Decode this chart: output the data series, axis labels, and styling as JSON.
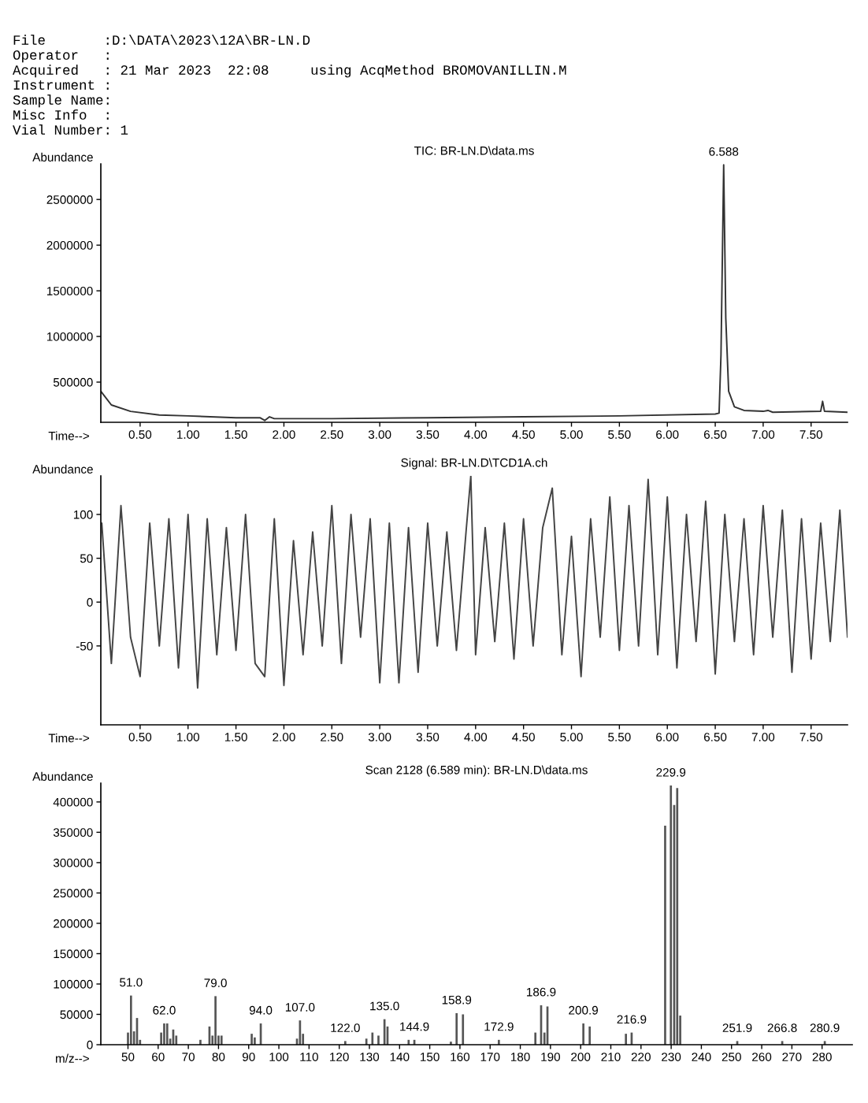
{
  "chart_data": [
    {
      "type": "line",
      "title": "TIC: BR-LN.D\\data.ms",
      "xlabel": "Time-->",
      "ylabel": "Abundance",
      "annotations": [
        "File       :D:\\DATA\\2023\\12A\\BR-LN.D",
        "Operator   :",
        "Acquired   : 21 Mar 2023  22:08     using AcqMethod BROMOVANILLIN.M",
        "Instrument :",
        "Sample Name:",
        "Misc Info  :",
        "Vial Number: 1",
        {
          "text": "6.588",
          "x": 6.588,
          "y": 2880000
        }
      ],
      "x": [
        0.09,
        0.2,
        0.4,
        0.7,
        1.0,
        1.5,
        1.75,
        1.8,
        1.85,
        1.9,
        2.5,
        3.5,
        4.5,
        5.5,
        6.5,
        6.54,
        6.56,
        6.588,
        6.61,
        6.64,
        6.7,
        6.8,
        7.0,
        7.05,
        7.1,
        7.6,
        7.62,
        7.64,
        7.88
      ],
      "series": [
        {
          "color": "#333333",
          "values": [
            400000,
            250000,
            180000,
            140000,
            130000,
            110000,
            110000,
            80000,
            120000,
            100000,
            100000,
            110000,
            120000,
            130000,
            150000,
            160000,
            800000,
            2880000,
            1200000,
            400000,
            230000,
            190000,
            180000,
            190000,
            170000,
            180000,
            290000,
            180000,
            170000
          ]
        }
      ],
      "xlim": [
        0.09,
        7.88
      ],
      "ylim": [
        60000,
        2890000
      ],
      "xticks": [
        {
          "value": 0.5,
          "label": "0.50"
        },
        {
          "value": 1.0,
          "label": "1.00"
        },
        {
          "value": 1.5,
          "label": "1.50"
        },
        {
          "value": 2.0,
          "label": "2.00"
        },
        {
          "value": 2.5,
          "label": "2.50"
        },
        {
          "value": 3.0,
          "label": "3.00"
        },
        {
          "value": 3.5,
          "label": "3.50"
        },
        {
          "value": 4.0,
          "label": "4.00"
        },
        {
          "value": 4.5,
          "label": "4.50"
        },
        {
          "value": 5.0,
          "label": "5.00"
        },
        {
          "value": 5.5,
          "label": "5.50"
        },
        {
          "value": 6.0,
          "label": "6.00"
        },
        {
          "value": 6.5,
          "label": "6.50"
        },
        {
          "value": 7.0,
          "label": "7.00"
        },
        {
          "value": 7.5,
          "label": "7.50"
        }
      ],
      "yticks": [
        500000,
        1000000,
        1500000,
        2000000,
        2500000
      ],
      "grid": false,
      "legend": false
    },
    {
      "type": "line",
      "title": "Signal: BR-LN.D\\TCD1A.ch",
      "xlabel": "Time-->",
      "ylabel": "Abundance",
      "x": [
        0.1,
        0.2,
        0.3,
        0.4,
        0.5,
        0.6,
        0.7,
        0.8,
        0.9,
        1.0,
        1.1,
        1.2,
        1.3,
        1.4,
        1.5,
        1.6,
        1.7,
        1.8,
        1.9,
        2.0,
        2.1,
        2.2,
        2.3,
        2.4,
        2.5,
        2.6,
        2.7,
        2.8,
        2.9,
        3.0,
        3.1,
        3.2,
        3.3,
        3.4,
        3.5,
        3.6,
        3.7,
        3.8,
        3.9,
        3.95,
        4.0,
        4.1,
        4.2,
        4.3,
        4.4,
        4.5,
        4.6,
        4.7,
        4.8,
        4.9,
        5.0,
        5.1,
        5.2,
        5.3,
        5.4,
        5.5,
        5.6,
        5.7,
        5.8,
        5.9,
        6.0,
        6.1,
        6.2,
        6.3,
        6.4,
        6.5,
        6.6,
        6.7,
        6.8,
        6.9,
        7.0,
        7.1,
        7.2,
        7.3,
        7.4,
        7.5,
        7.6,
        7.7,
        7.8,
        7.88
      ],
      "series": [
        {
          "color": "#444444",
          "values": [
            90,
            -70,
            110,
            -40,
            -85,
            90,
            -50,
            95,
            -75,
            100,
            -98,
            95,
            -60,
            85,
            -55,
            100,
            -70,
            -85,
            95,
            -95,
            70,
            -60,
            80,
            -50,
            110,
            -70,
            100,
            -40,
            95,
            -92,
            90,
            -92,
            85,
            -80,
            90,
            -50,
            80,
            -55,
            80,
            144,
            -60,
            85,
            -45,
            90,
            -65,
            95,
            -50,
            85,
            130,
            -60,
            75,
            -85,
            95,
            -40,
            120,
            -55,
            110,
            -50,
            140,
            -60,
            120,
            -75,
            100,
            -45,
            115,
            -82,
            100,
            -45,
            95,
            -60,
            110,
            -40,
            105,
            -80,
            95,
            -65,
            90,
            -45,
            105,
            -40
          ]
        }
      ],
      "xlim": [
        0.09,
        7.88
      ],
      "ylim": [
        -140,
        144
      ],
      "xticks": [
        {
          "value": 0.5,
          "label": "0.50"
        },
        {
          "value": 1.0,
          "label": "1.00"
        },
        {
          "value": 1.5,
          "label": "1.50"
        },
        {
          "value": 2.0,
          "label": "2.00"
        },
        {
          "value": 2.5,
          "label": "2.50"
        },
        {
          "value": 3.0,
          "label": "3.00"
        },
        {
          "value": 3.5,
          "label": "3.50"
        },
        {
          "value": 4.0,
          "label": "4.00"
        },
        {
          "value": 4.5,
          "label": "4.50"
        },
        {
          "value": 5.0,
          "label": "5.00"
        },
        {
          "value": 5.5,
          "label": "5.50"
        },
        {
          "value": 6.0,
          "label": "6.00"
        },
        {
          "value": 6.5,
          "label": "6.50"
        },
        {
          "value": 7.0,
          "label": "7.00"
        },
        {
          "value": 7.5,
          "label": "7.50"
        }
      ],
      "yticks": [
        -50,
        0,
        50,
        100
      ],
      "grid": false,
      "legend": false
    },
    {
      "type": "bar",
      "title": "Scan 2128 (6.589 min): BR-LN.D\\data.ms",
      "xlabel": "m/z-->",
      "ylabel": "Abundance",
      "annotations": [
        {
          "text": "51.0",
          "x": 51,
          "y": 81000
        },
        {
          "text": "62.0",
          "x": 62,
          "y": 35000
        },
        {
          "text": "79.0",
          "x": 79,
          "y": 80000
        },
        {
          "text": "94.0",
          "x": 94,
          "y": 35000
        },
        {
          "text": "107.0",
          "x": 107,
          "y": 40000
        },
        {
          "text": "122.0",
          "x": 122,
          "y": 6000
        },
        {
          "text": "135.0",
          "x": 135,
          "y": 42000
        },
        {
          "text": "144.9",
          "x": 144.9,
          "y": 8000
        },
        {
          "text": "158.9",
          "x": 158.9,
          "y": 52000
        },
        {
          "text": "172.9",
          "x": 172.9,
          "y": 8000
        },
        {
          "text": "186.9",
          "x": 186.9,
          "y": 65000
        },
        {
          "text": "200.9",
          "x": 200.9,
          "y": 35000
        },
        {
          "text": "216.9",
          "x": 216.9,
          "y": 20000
        },
        {
          "text": "229.9",
          "x": 229.9,
          "y": 427000
        },
        {
          "text": "251.9",
          "x": 251.9,
          "y": 6000
        },
        {
          "text": "266.8",
          "x": 266.8,
          "y": 6000
        },
        {
          "text": "280.9",
          "x": 280.9,
          "y": 6000
        }
      ],
      "x": [
        50,
        51,
        52,
        53,
        54,
        61,
        62,
        63,
        64,
        65,
        66,
        74,
        77,
        78,
        79,
        80,
        81,
        91,
        92,
        94,
        106,
        107,
        108,
        122,
        129,
        131,
        133,
        135,
        136,
        143,
        144.9,
        157,
        158.9,
        161,
        172.9,
        185,
        186.9,
        188,
        189,
        200.9,
        203,
        215,
        216.9,
        228,
        229.9,
        231,
        232,
        233,
        251.9,
        266.8,
        280.9
      ],
      "series": [
        {
          "color": "#555555",
          "values": [
            20000,
            81000,
            22000,
            44000,
            8000,
            20000,
            35000,
            35000,
            10000,
            25000,
            15000,
            8000,
            30000,
            15000,
            80000,
            15000,
            15000,
            18000,
            12000,
            35000,
            10000,
            40000,
            18000,
            6000,
            10000,
            20000,
            15000,
            42000,
            30000,
            8000,
            8000,
            5000,
            52000,
            50000,
            8000,
            20000,
            65000,
            20000,
            63000,
            35000,
            30000,
            18000,
            20000,
            361000,
            427000,
            395000,
            423000,
            48000,
            6000,
            6000,
            6000
          ]
        }
      ],
      "xlim": [
        41,
        290
      ],
      "ylim": [
        0,
        431000
      ],
      "xticks": [
        50,
        60,
        70,
        80,
        90,
        100,
        110,
        120,
        130,
        140,
        150,
        160,
        170,
        180,
        190,
        200,
        210,
        220,
        230,
        240,
        250,
        260,
        270,
        280
      ],
      "yticks": [
        0,
        50000,
        100000,
        150000,
        200000,
        250000,
        300000,
        350000,
        400000
      ],
      "grid": false,
      "legend": false
    }
  ]
}
